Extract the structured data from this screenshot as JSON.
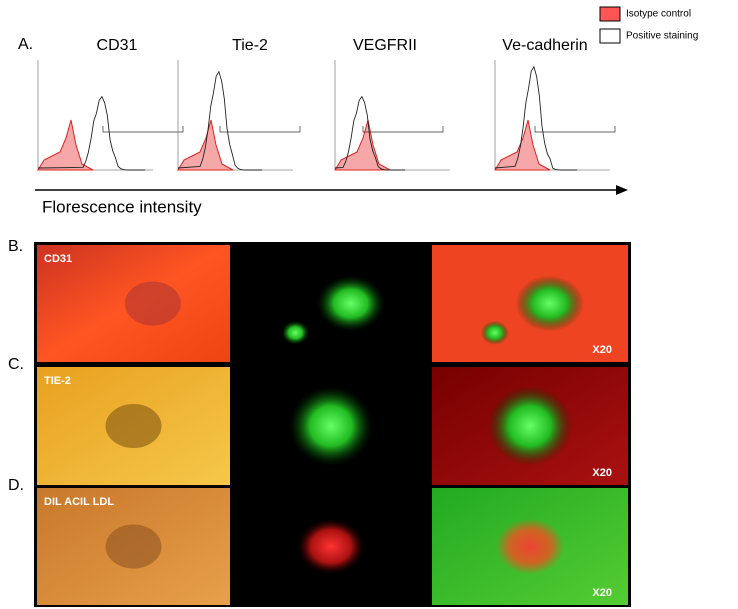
{
  "legend": {
    "items": [
      "Isotype control",
      "Positive staining"
    ]
  },
  "panel_a": {
    "label": "A.",
    "markers": [
      "CD31",
      "Tie-2",
      "VEGFRII",
      "Ve-cadherin"
    ],
    "axis_label": "Florescence intensity"
  },
  "panel_rows": [
    {
      "label": "B.",
      "image_label": "CD31",
      "magnification": "X20"
    },
    {
      "label": "C.",
      "image_label": "TIE-2",
      "magnification": "X20"
    },
    {
      "label": "D.",
      "image_label": "DIL ACIL LDL",
      "magnification": "X20"
    }
  ]
}
